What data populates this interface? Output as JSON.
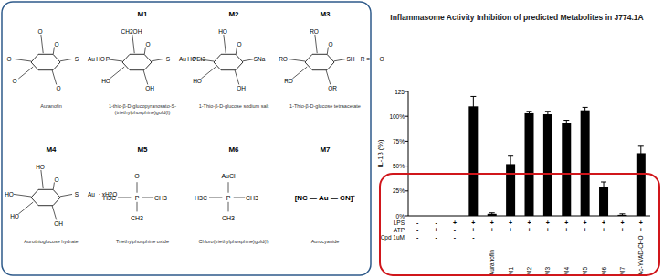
{
  "structures": [
    {
      "label": null,
      "name": [
        "Auranofin"
      ],
      "ring": true,
      "atoms": [
        "O",
        "O",
        "O",
        "O",
        "O",
        "S",
        "Au",
        "P"
      ]
    },
    {
      "label": "M1",
      "name": [
        "1-thio-β-D-glucopyranosato-S-",
        "(triethylphosphine)gold(I)"
      ],
      "ring": true,
      "atoms": [
        "CH2OH",
        "HO",
        "HO",
        "OH",
        "O",
        "S",
        "Au",
        "PEt3"
      ]
    },
    {
      "label": "M2",
      "name": [
        "1-Thio-β-D-glucose sodium salt"
      ],
      "ring": true,
      "atoms": [
        "HO",
        "HO",
        "HO",
        "OH",
        "O",
        "SNa"
      ]
    },
    {
      "label": "M3",
      "name": [
        "1-Thio-β-D-glucose tetraacetate"
      ],
      "ring": true,
      "atoms": [
        "RO",
        "RO",
        "RO",
        "OR",
        "O",
        "SH",
        "R =",
        "O"
      ]
    },
    {
      "label": "M4",
      "name": [
        "Aurothioglucose hydrate"
      ],
      "ring": true,
      "atoms": [
        "HO",
        "HO",
        "HO",
        "OH",
        "O",
        "S",
        "Au",
        "· xH2O"
      ]
    },
    {
      "label": "M5",
      "name": [
        "Triethylphosphine oxide"
      ],
      "ring": false,
      "atoms": [
        "P",
        "O",
        "H3C",
        "CH3",
        "CH3"
      ]
    },
    {
      "label": "M6",
      "name": [
        "Chloro(triethylphosphine)gold(I)"
      ],
      "ring": false,
      "atoms": [
        "P",
        "AuCl",
        "H3C",
        "CH3",
        "CH3"
      ]
    },
    {
      "label": "M7",
      "name": [
        "Aurocyanide"
      ],
      "ring": false,
      "atoms": [
        "[NC — Au — CN]⁻"
      ]
    }
  ],
  "chart_data": {
    "type": "bar",
    "title": "Inflammasome Activity Inhibition of predicted Metabolites in J774.1A",
    "y_label": "IL-1β (%)",
    "categories": [
      "-",
      "-",
      "-",
      "-",
      "Auranofin",
      "M1",
      "M2",
      "M3",
      "M4",
      "M5",
      "M6",
      "M7",
      "Ac-YVAD-CHO"
    ],
    "values": [
      0,
      0,
      0,
      110,
      2,
      52,
      103,
      102,
      93,
      106,
      29,
      1,
      63
    ],
    "errors": [
      0,
      0,
      0,
      10,
      1,
      8,
      2,
      3,
      3,
      3,
      5,
      1,
      7
    ],
    "conditions": [
      {
        "name": "LPS",
        "values": [
          "-",
          "-",
          "+",
          "+",
          "+",
          "+",
          "+",
          "+",
          "+",
          "+",
          "+",
          "+",
          "+"
        ]
      },
      {
        "name": "ATP",
        "values": [
          "-",
          "+",
          "-",
          "+",
          "+",
          "+",
          "+",
          "+",
          "+",
          "+",
          "+",
          "+",
          "+"
        ]
      }
    ],
    "compound_label": "Cpd 1uM",
    "color": "#000000",
    "ylim": [
      0,
      125
    ],
    "yticks": [
      {
        "value": 0,
        "label": "0%"
      },
      {
        "value": 25,
        "label": "25%"
      },
      {
        "value": 50,
        "label": "50%"
      },
      {
        "value": 75,
        "label": "75%"
      },
      {
        "value": 100,
        "label": "100%"
      },
      125
    ],
    "grid": false
  }
}
